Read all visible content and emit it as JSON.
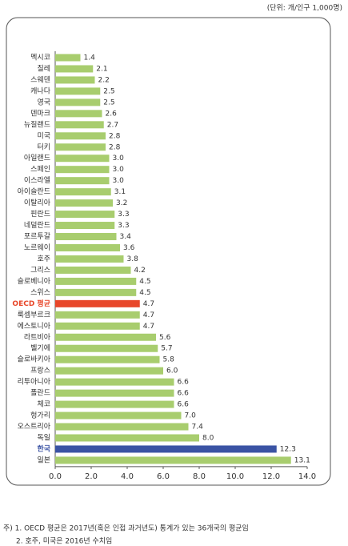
{
  "chart_data": {
    "type": "bar",
    "orientation": "horizontal",
    "unit_note": "(단위: 개/인구 1,000명)",
    "categories": [
      "멕시코",
      "칠레",
      "스웨덴",
      "캐나다",
      "영국",
      "덴마크",
      "뉴질랜드",
      "미국",
      "터키",
      "아일랜드",
      "스페인",
      "이스라엘",
      "아이슬란드",
      "이탈리아",
      "핀란드",
      "네덜란드",
      "포르투갈",
      "노르웨이",
      "호주",
      "그리스",
      "슬로베니아",
      "스위스",
      "OECD 평균",
      "룩셈부르크",
      "에스토니아",
      "라트비아",
      "벨기에",
      "슬로바키아",
      "프랑스",
      "리투아니아",
      "폴란드",
      "체코",
      "헝가리",
      "오스트리아",
      "독일",
      "한국",
      "일본"
    ],
    "values": [
      1.4,
      2.1,
      2.2,
      2.5,
      2.5,
      2.6,
      2.7,
      2.8,
      2.8,
      3.0,
      3.0,
      3.0,
      3.1,
      3.2,
      3.3,
      3.3,
      3.4,
      3.6,
      3.8,
      4.2,
      4.5,
      4.5,
      4.7,
      4.7,
      4.7,
      5.6,
      5.7,
      5.8,
      6.0,
      6.6,
      6.6,
      6.6,
      7.0,
      7.4,
      8.0,
      12.3,
      13.1
    ],
    "value_labels": [
      "1.4",
      "2.1",
      "2.2",
      "2.5",
      "2.5",
      "2.6",
      "2.7",
      "2.8",
      "2.8",
      "3.0",
      "3.0",
      "3.0",
      "3.1",
      "3.2",
      "3.3",
      "3.3",
      "3.4",
      "3.6",
      "3.8",
      "4.2",
      "4.5",
      "4.5",
      "4.7",
      "4.7",
      "4.7",
      "5.6",
      "5.7",
      "5.8",
      "6.0",
      "6.6",
      "6.6",
      "6.6",
      "7.0",
      "7.4",
      "8.0",
      "12.3",
      "13.1"
    ],
    "colors": [
      "#a8cd6e",
      "#a8cd6e",
      "#a8cd6e",
      "#a8cd6e",
      "#a8cd6e",
      "#a8cd6e",
      "#a8cd6e",
      "#a8cd6e",
      "#a8cd6e",
      "#a8cd6e",
      "#a8cd6e",
      "#a8cd6e",
      "#a8cd6e",
      "#a8cd6e",
      "#a8cd6e",
      "#a8cd6e",
      "#a8cd6e",
      "#a8cd6e",
      "#a8cd6e",
      "#a8cd6e",
      "#a8cd6e",
      "#a8cd6e",
      "#e8472a",
      "#a8cd6e",
      "#a8cd6e",
      "#a8cd6e",
      "#a8cd6e",
      "#a8cd6e",
      "#a8cd6e",
      "#a8cd6e",
      "#a8cd6e",
      "#a8cd6e",
      "#a8cd6e",
      "#a8cd6e",
      "#a8cd6e",
      "#3a53a4",
      "#a8cd6e"
    ],
    "xlim": [
      0,
      14
    ],
    "xticks": [
      {
        "value": 0,
        "label": "0.0"
      },
      {
        "value": 2,
        "label": "2.0"
      },
      {
        "value": 4,
        "label": "4.0"
      },
      {
        "value": 6,
        "label": "6.0"
      },
      {
        "value": 8,
        "label": "8.0"
      },
      {
        "value": 10,
        "label": "10.0"
      },
      {
        "value": 12,
        "label": "12.0"
      },
      {
        "value": 14,
        "label": "14.0"
      }
    ],
    "footnotes": [
      "주) 1. OECD 평균은 2017년(혹은 인접 과거년도) 통계가 있는 36개국의 평균임",
      "2. 호주, 미국은 2016년 수치임"
    ]
  }
}
